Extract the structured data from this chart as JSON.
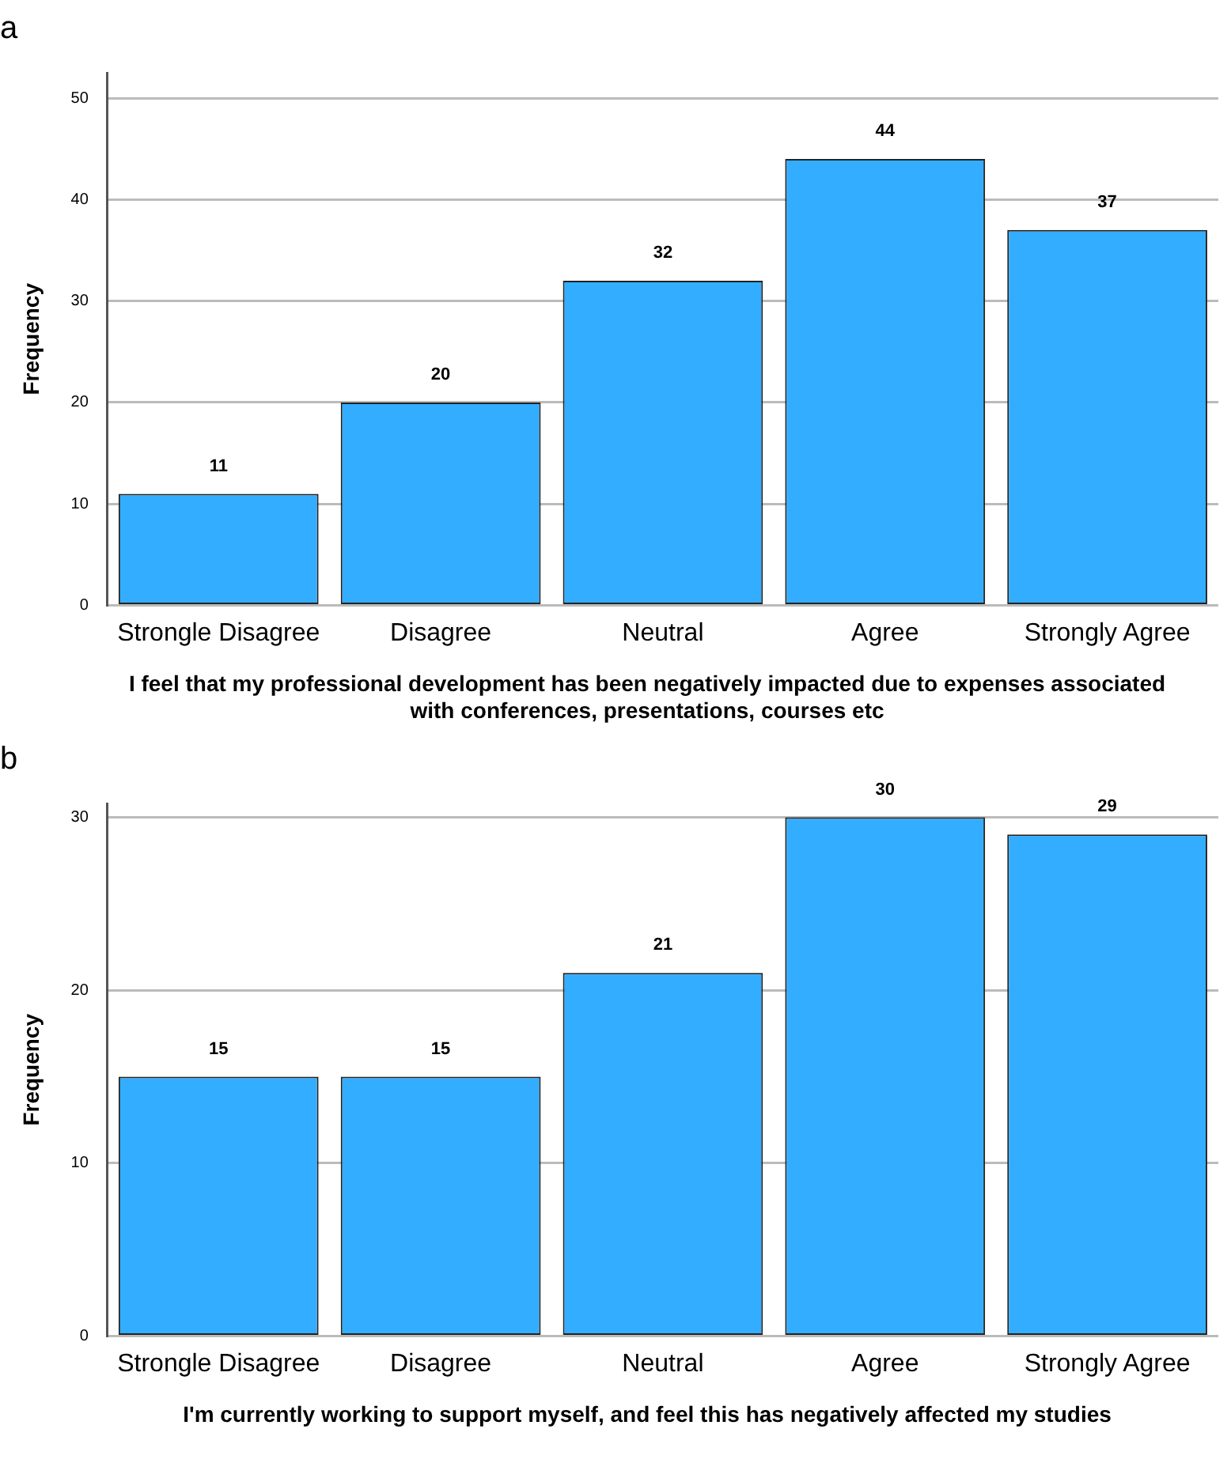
{
  "chart_data": [
    {
      "type": "bar",
      "title": "a",
      "categories": [
        "Strongle Disagree",
        "Disagree",
        "Neutral",
        "Agree",
        "Strongly Agree"
      ],
      "values": [
        11,
        20,
        32,
        44,
        37
      ],
      "color": "#33adff",
      "ylim": [
        0,
        52.5
      ],
      "yticks": [
        0,
        10,
        20,
        30,
        40,
        50
      ],
      "grid": "y",
      "data_labels": true,
      "ylabel": "Frequency",
      "xlabel": "I feel that my professional development has been negatively impacted due to expenses associated with conferences, presentations, courses etc"
    },
    {
      "type": "bar",
      "title": "b",
      "categories": [
        "Strongle Disagree",
        "Disagree",
        "Neutral",
        "Agree",
        "Strongly Agree"
      ],
      "values": [
        15,
        15,
        21,
        30,
        29
      ],
      "color": "#33adff",
      "ylim": [
        0,
        30.8
      ],
      "yticks": [
        0,
        10,
        20,
        30
      ],
      "grid": "y",
      "data_labels": true,
      "ylabel": "Frequency",
      "xlabel": "I'm currently working to support myself, and feel this has negatively affected my studies"
    }
  ]
}
